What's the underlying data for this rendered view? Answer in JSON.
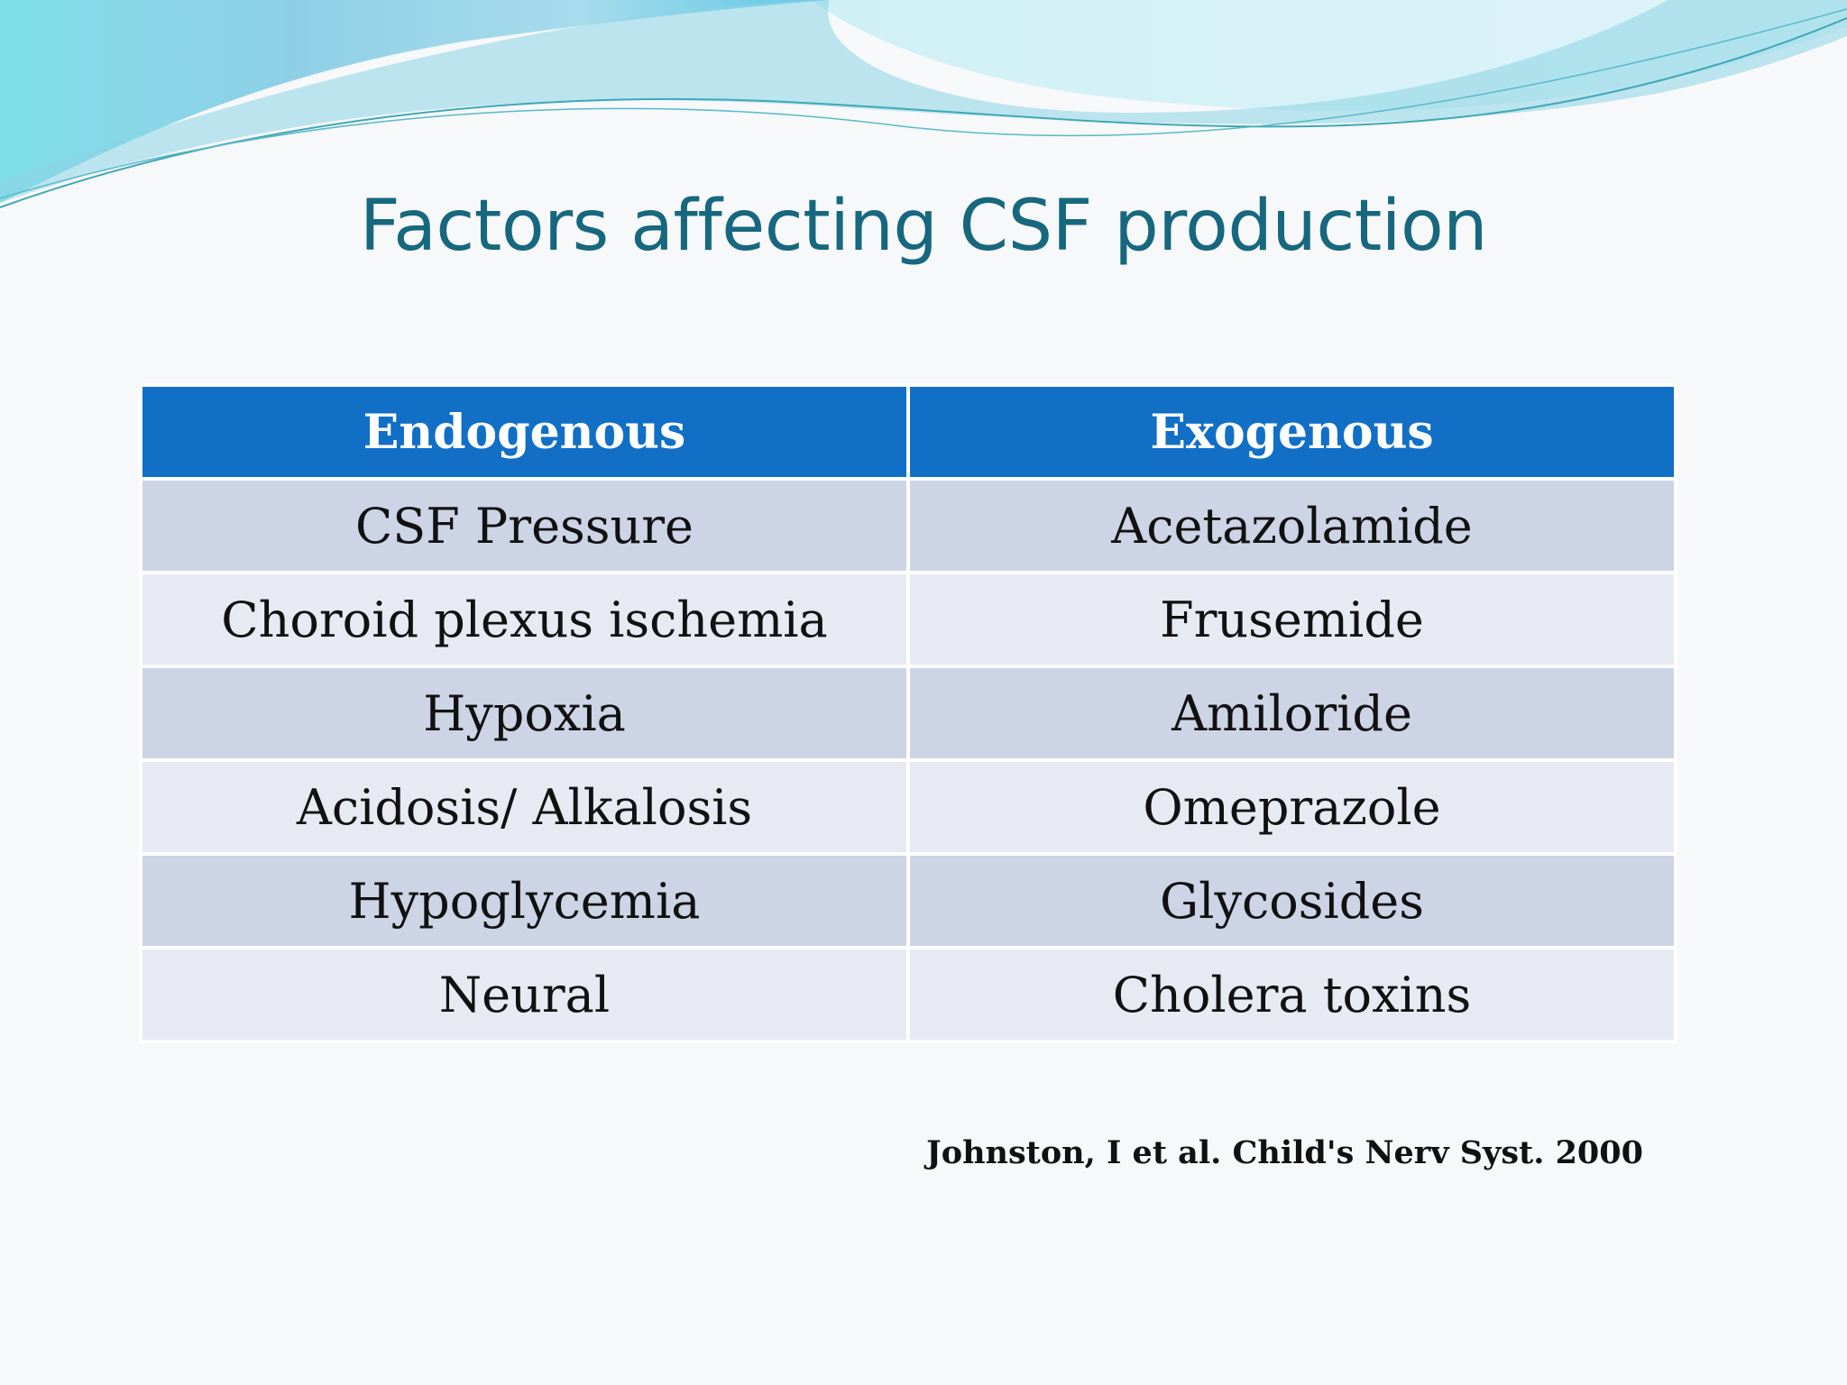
{
  "slide": {
    "title": "Factors affecting CSF production",
    "table": {
      "headers": [
        "Endogenous",
        "Exogenous"
      ],
      "rows": [
        [
          "CSF Pressure",
          "Acetazolamide"
        ],
        [
          "Choroid plexus ischemia",
          "Frusemide"
        ],
        [
          "Hypoxia",
          "Amiloride"
        ],
        [
          "Acidosis/ Alkalosis",
          "Omeprazole"
        ],
        [
          "Hypoglycemia",
          "Glycosides"
        ],
        [
          "Neural",
          "Cholera toxins"
        ]
      ]
    },
    "citation": "Johnston, I et al. Child's Nerv Syst. 2000"
  },
  "colors": {
    "title": "#17687e",
    "header_bg": "#116fc6",
    "row_dark": "#cdd4e6",
    "row_light": "#e7eaf3",
    "wave_teal": "#6fd0e0"
  }
}
